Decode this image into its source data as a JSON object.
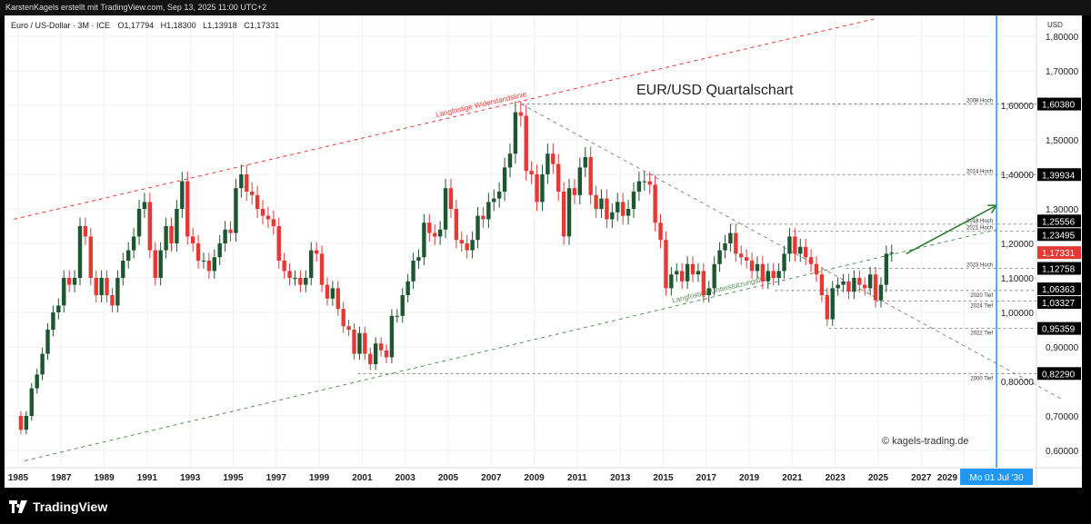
{
  "header": {
    "attribution": "KarstenKagels erstellt mit TradingView.com, Sep 13, 2025 11:00 UTC+2"
  },
  "legend": {
    "symbol": "Euro / US-Dollar · 3M · ICE",
    "open": "O1,17794",
    "high": "H1,18300",
    "low": "L1,13918",
    "close": "C1,17331"
  },
  "footer": {
    "brand": "TradingView"
  },
  "colors": {
    "up": "#1e5631",
    "down": "#e53935",
    "resistance": "#e53935",
    "support": "#2e7d32",
    "cursor": "#2196f3"
  },
  "chart_data": {
    "type": "candlestick",
    "title": "EUR/USD Quartalschart",
    "interval": "quarterly",
    "start": "1985-Q1",
    "first_open": 0.7,
    "close": [
      0.66,
      0.7,
      0.78,
      0.82,
      0.88,
      0.95,
      1.0,
      1.02,
      1.1,
      1.08,
      1.1,
      1.25,
      1.22,
      1.1,
      1.05,
      1.1,
      1.05,
      1.02,
      1.1,
      1.15,
      1.18,
      1.22,
      1.3,
      1.32,
      1.18,
      1.1,
      1.18,
      1.25,
      1.2,
      1.3,
      1.38,
      1.22,
      1.2,
      1.15,
      1.15,
      1.12,
      1.16,
      1.2,
      1.24,
      1.23,
      1.36,
      1.4,
      1.35,
      1.34,
      1.3,
      1.28,
      1.27,
      1.25,
      1.15,
      1.12,
      1.1,
      1.1,
      1.08,
      1.1,
      1.18,
      1.17,
      1.08,
      1.04,
      1.07,
      1.01,
      0.96,
      0.95,
      0.88,
      0.94,
      0.88,
      0.85,
      0.91,
      0.89,
      0.87,
      0.99,
      0.99,
      1.05,
      1.09,
      1.15,
      1.16,
      1.26,
      1.23,
      1.22,
      1.24,
      1.36,
      1.3,
      1.21,
      1.2,
      1.18,
      1.21,
      1.28,
      1.27,
      1.32,
      1.33,
      1.35,
      1.42,
      1.46,
      1.58,
      1.57,
      1.41,
      1.4,
      1.32,
      1.4,
      1.46,
      1.43,
      1.35,
      1.22,
      1.36,
      1.34,
      1.42,
      1.45,
      1.34,
      1.3,
      1.33,
      1.27,
      1.29,
      1.32,
      1.28,
      1.3,
      1.35,
      1.38,
      1.38,
      1.37,
      1.26,
      1.21,
      1.07,
      1.11,
      1.12,
      1.09,
      1.14,
      1.11,
      1.12,
      1.05,
      1.07,
      1.14,
      1.18,
      1.2,
      1.23,
      1.17,
      1.16,
      1.15,
      1.12,
      1.14,
      1.09,
      1.12,
      1.1,
      1.12,
      1.17,
      1.22,
      1.17,
      1.19,
      1.16,
      1.14,
      1.11,
      1.05,
      0.98,
      1.07,
      1.08,
      1.09,
      1.06,
      1.1,
      1.08,
      1.07,
      1.11,
      1.035,
      1.08,
      1.17,
      1.1733
    ],
    "y_axis": {
      "unit": "USD",
      "ticks": [
        "1,80000",
        "1,70000",
        "1,60000",
        "1,50000",
        "1,40000",
        "1,30000",
        "1,20000",
        "1,10000",
        "1,00000",
        "0,90000",
        "0,80000",
        "0,70000",
        "0,60000"
      ],
      "range": [
        0.55,
        1.85
      ]
    },
    "x_axis": {
      "ticks": [
        "1985",
        "1987",
        "1989",
        "1991",
        "1993",
        "1995",
        "1997",
        "1999",
        "2001",
        "2003",
        "2005",
        "2007",
        "2009",
        "2011",
        "2013",
        "2015",
        "2017",
        "2019",
        "2021",
        "2023",
        "2025",
        "2027",
        "2029"
      ],
      "range": [
        1984.6,
        2031.9
      ]
    },
    "last_price": "1,17331",
    "cursor_label": "Mo 01 Jul '30",
    "cursor_date": 2030.5,
    "levels": [
      {
        "label": "2008 Hoch",
        "value": 1.6038,
        "text": "1,60380",
        "from": 2008.4
      },
      {
        "label": "2014 Hoch",
        "value": 1.39934,
        "text": "1,39934",
        "from": 2014.2
      },
      {
        "label": "2018 Hoch",
        "value": 1.25556,
        "text": "1,25556",
        "from": 2018.1
      },
      {
        "label": "2021 Hoch",
        "value": 1.23495,
        "text": "1,23495",
        "from": 2021.0
      },
      {
        "label": "2023 Hoch",
        "value": 1.12758,
        "text": "1,12758",
        "from": 2023.5
      },
      {
        "label": "2020 Tief",
        "value": 1.06363,
        "text": "1,06363",
        "from": 2020.2
      },
      {
        "label": "2024 Tief",
        "value": 1.03327,
        "text": "1,03327",
        "from": 2024.9
      },
      {
        "label": "2022 Tief",
        "value": 0.95359,
        "text": "0,95359",
        "from": 2022.7
      },
      {
        "label": "2000 Tief",
        "value": 0.8229,
        "text": "0,82290",
        "from": 2000.8
      }
    ],
    "trendlines": [
      {
        "name": "Langfristige Widerstandslinie",
        "color": "#e53935",
        "from": [
          1984.8,
          1.27
        ],
        "to": [
          2024.8,
          1.85
        ]
      },
      {
        "name": "Langfristige Unterstützungslinie",
        "color": "#5a8f5a",
        "from": [
          1985.3,
          0.57
        ],
        "to": [
          2030.5,
          1.24
        ]
      },
      {
        "name": "",
        "color": "#888888",
        "from": [
          2008.4,
          1.6038
        ],
        "to": [
          2033.5,
          0.75
        ]
      }
    ],
    "arrow": {
      "from": [
        2026.3,
        1.17
      ],
      "to": [
        2030.5,
        1.31
      ]
    },
    "watermark": "© kagels-trading.de"
  }
}
